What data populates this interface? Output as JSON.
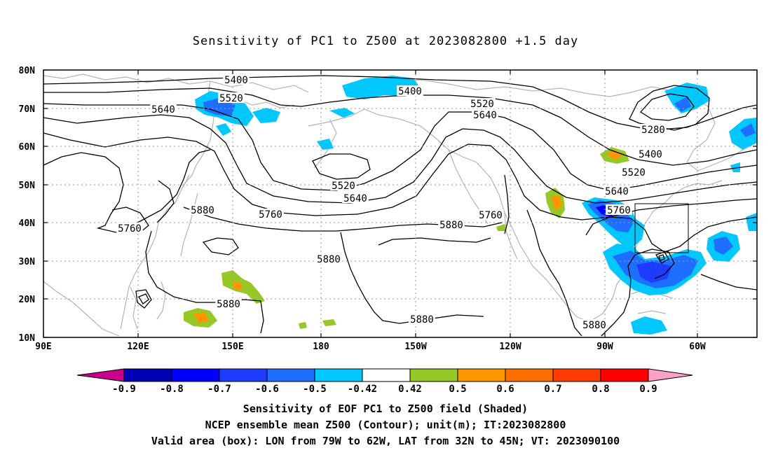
{
  "title": "Sensitivity of PC1 to Z500 at 2023082800 +1.5 day",
  "axes": {
    "lat_labels": [
      "80N",
      "70N",
      "60N",
      "50N",
      "40N",
      "30N",
      "20N",
      "10N"
    ],
    "lon_labels": [
      "90E",
      "120E",
      "150E",
      "180",
      "150W",
      "120W",
      "90W",
      "60W"
    ]
  },
  "contour_labels": [
    "5400",
    "5400",
    "5520",
    "5520",
    "5520",
    "5520",
    "5640",
    "5640",
    "5640",
    "5640",
    "5760",
    "5760",
    "5760",
    "5760",
    "5880",
    "5880",
    "5880",
    "5880",
    "5880",
    "5880",
    "5280",
    "5400"
  ],
  "colorbar": {
    "tick_labels": [
      "-0.9",
      "-0.8",
      "-0.7",
      "-0.6",
      "-0.5",
      "-0.42",
      "0.42",
      "0.5",
      "0.6",
      "0.7",
      "0.8",
      "0.9"
    ],
    "colors": [
      "#c8008c",
      "#0000b4",
      "#0000ff",
      "#1e3cff",
      "#1e6eff",
      "#00c8ff",
      "#ffffff",
      "#96c828",
      "#ff9600",
      "#ff6e00",
      "#ff3c00",
      "#ff0000",
      "#ffa0c8"
    ]
  },
  "valid_box": {
    "lon_min": "79W",
    "lon_max": "62W",
    "lat_min": "32N",
    "lat_max": "45N"
  },
  "captions": {
    "line1": "Sensitivity of EOF PC1 to Z500 field (Shaded)",
    "line2": "NCEP ensemble mean Z500 (Contour); unit(m); IT:2023082800",
    "line3": "Valid area (box): LON from 79W to 62W, LAT from 32N to 45N; VT: 2023090100"
  },
  "colors": {
    "contour": "#000000",
    "coastline": "#b4b4b4",
    "grid": "#9a9a9a"
  }
}
